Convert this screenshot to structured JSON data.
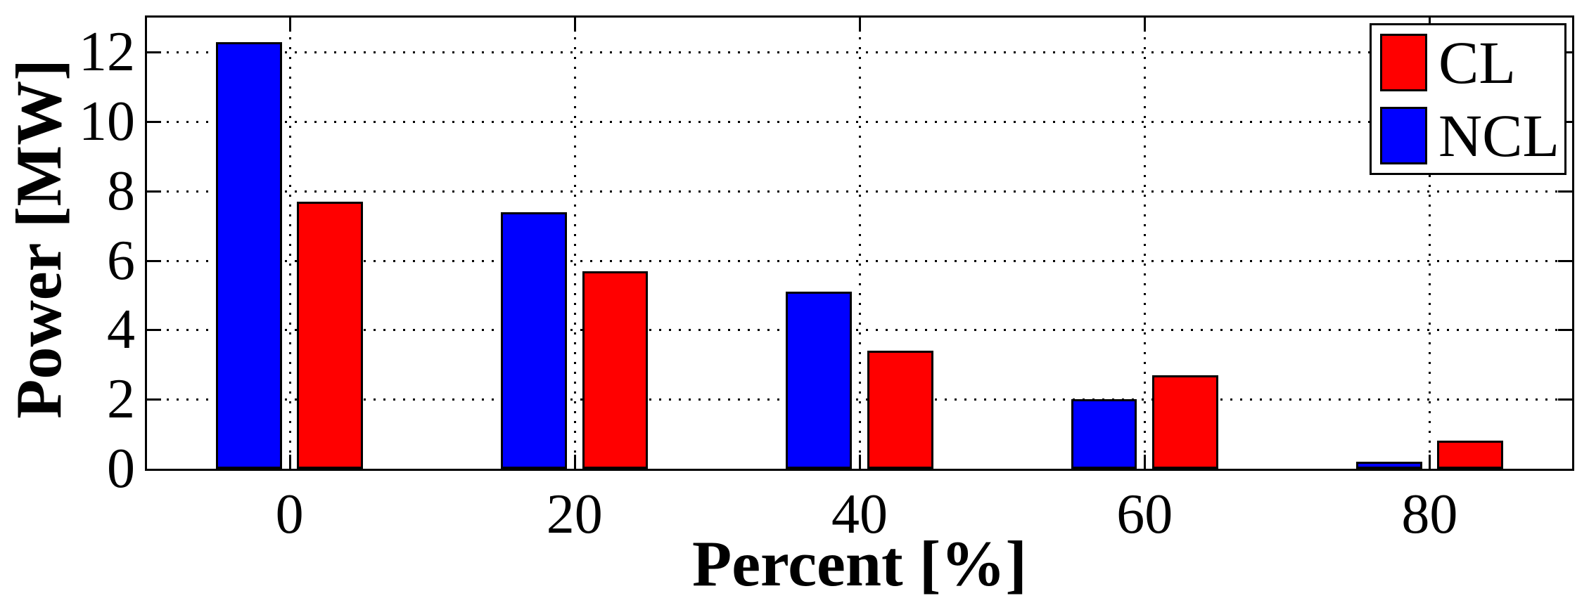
{
  "chart_data": {
    "type": "bar",
    "title": "",
    "xlabel": "Percent [%]",
    "ylabel": "Power [MW]",
    "categories": [
      0,
      20,
      40,
      60,
      80
    ],
    "series": [
      {
        "name": "CL",
        "color": "#ff0000",
        "offset_units": 2.85,
        "values": [
          7.7,
          5.7,
          3.4,
          2.7,
          0.8
        ]
      },
      {
        "name": "NCL",
        "color": "#0000ff",
        "offset_units": -2.85,
        "values": [
          12.3,
          7.4,
          5.1,
          2.0,
          0.2
        ]
      }
    ],
    "bar_width_units": 4.63,
    "xlim": [
      -10,
      90
    ],
    "ylim": [
      0,
      13
    ],
    "xticks": [
      0,
      20,
      40,
      60,
      80
    ],
    "yticks": [
      0,
      2,
      4,
      6,
      8,
      10,
      12
    ],
    "grid": "dotted",
    "gridline_color": "#000000",
    "axis_color": "#000000",
    "background_color": "#ffffff",
    "legend_position": "top-right",
    "legend_entries": [
      "CL",
      "NCL"
    ]
  }
}
